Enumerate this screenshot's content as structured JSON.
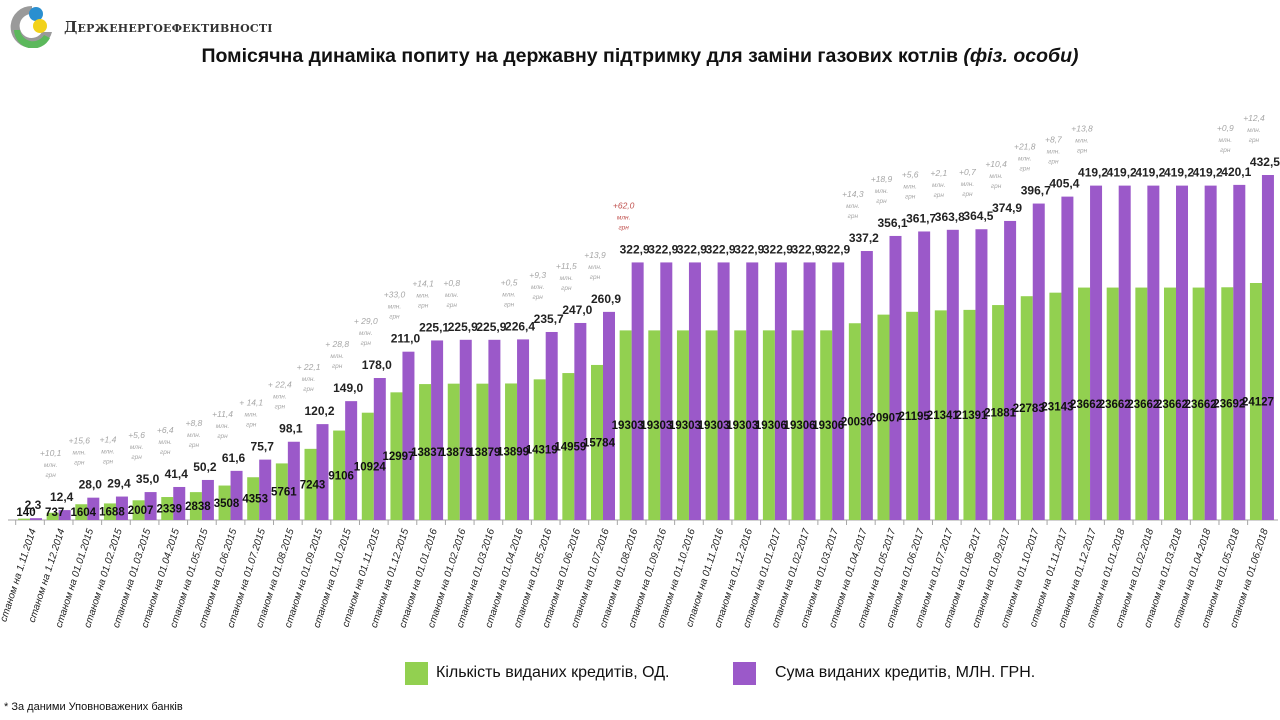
{
  "header": {
    "org_name": "Держенергоефективності",
    "title_main": "Помісячна динаміка попиту на державну підтримку для заміни газових котлів",
    "title_suffix": "(фіз. особи)"
  },
  "footnote": "* За даними Уповноважених банків",
  "colors": {
    "count": "#92d050",
    "sum": "#9b59c9",
    "annot": "#a6a6a6",
    "annot_highlight": "#c0504d"
  },
  "chart_data": {
    "type": "bar",
    "title": "Помісячна динаміка попиту на державну підтримку для заміни газових котлів (фіз. особи)",
    "xlabel": "",
    "ylabel": "",
    "grid": false,
    "legend_position": "bottom",
    "categories": [
      "станом на 1.11.2014",
      "станом на 1.12.2014",
      "станом на 01.01.2015",
      "станом на 01.02.2015",
      "станом на 01.03.2015",
      "станом на 01.04.2015",
      "станом на 01.05.2015",
      "станом на 01.06.2015",
      "станом на 01.07.2015",
      "станом на 01.08.2015",
      "станом на 01.09.2015",
      "станом на 01.10.2015",
      "станом на 01.11.2015",
      "станом на 01.12.2015",
      "станом на 01.01.2016",
      "станом на 01.02.2016",
      "станом на 01.03.2016",
      "станом на 01.04.2016",
      "станом на 01.05.2016",
      "станом на 01.06.2016",
      "станом на 01.07.2016",
      "станом на 01.08.2016",
      "станом на 01.09.2016",
      "станом на 01.10.2016",
      "станом на 01.11.2016",
      "станом на 01.12.2016",
      "станом на 01.01.2017",
      "станом на 01.02.2017",
      "станом на 01.03.2017",
      "станом на 01.04.2017",
      "станом на 01.05.2017",
      "станом на 01.06.2017",
      "станом на 01.07.2017",
      "станом на 01.08.2017",
      "станом на 01.09.2017",
      "станом на 01.10.2017",
      "станом на 01.11.2017",
      "станом на 01.12.2017",
      "станом на 01.01.2018",
      "станом на 01.02.2018",
      "станом на 01.03.2018",
      "станом на 01.04.2018",
      "станом на 01.05.2018",
      "станом на 01.06.2018"
    ],
    "series": [
      {
        "name": "Кількість виданих кредитів, ОД.",
        "axis": "count",
        "ylim": [
          0,
          35000
        ],
        "values": [
          140,
          737,
          1604,
          1688,
          2007,
          2339,
          2838,
          3508,
          4353,
          5761,
          7243,
          9106,
          10924,
          12997,
          13837,
          13879,
          13879,
          13899,
          14319,
          14959,
          15784,
          19303,
          19303,
          19303,
          19303,
          19303,
          19306,
          19306,
          19306,
          20030,
          20907,
          21195,
          21341,
          21391,
          21881,
          22783,
          23143,
          23662,
          23662,
          23662,
          23662,
          23662,
          23692,
          24127
        ],
        "labels": [
          "140",
          "737",
          "1604",
          "1688",
          "2007",
          "2339",
          "2838",
          "3508",
          "4353",
          "5761",
          "7243",
          "9106",
          "10924",
          "12997",
          "13837",
          "13879",
          "13879",
          "13899",
          "14319",
          "14959",
          "15784",
          "19303",
          "19303",
          "19303",
          "19303",
          "19303",
          "19306",
          "19306",
          "19306",
          "20030",
          "20907",
          "21195",
          "21341",
          "21391",
          "21881",
          "22783",
          "23143",
          "23662",
          "23662",
          "23662",
          "23662",
          "23662",
          "23692",
          "24127"
        ]
      },
      {
        "name": "Сума виданих кредитів, МЛН. ГРН.",
        "axis": "sum",
        "ylim": [
          0,
          431
        ],
        "values": [
          2.3,
          12.4,
          28.0,
          29.4,
          35.0,
          41.4,
          50.2,
          61.6,
          75.7,
          98.1,
          120.2,
          149.0,
          178.0,
          211.0,
          225.1,
          225.9,
          225.9,
          226.4,
          235.7,
          247.0,
          260.9,
          322.9,
          322.9,
          322.9,
          322.9,
          322.9,
          322.9,
          322.9,
          322.9,
          337.2,
          356.1,
          361.7,
          363.8,
          364.5,
          374.9,
          396.7,
          405.4,
          419.2,
          419.2,
          419.2,
          419.2,
          419.2,
          420.1,
          432.5
        ],
        "labels": [
          "2,3",
          "12,4",
          "28,0",
          "29,4",
          "35,0",
          "41,4",
          "50,2",
          "61,6",
          "75,7",
          "98,1",
          "120,2",
          "149,0",
          "178,0",
          "211,0",
          "225,1",
          "225,9",
          "225,9",
          "226,4",
          "235,7",
          "247,0",
          "260,9",
          "322,9",
          "322,9",
          "322,9",
          "322,9",
          "322,9",
          "322,9",
          "322,9",
          "322,9",
          "337,2",
          "356,1",
          "361,7",
          "363,8",
          "364,5",
          "374,9",
          "396,7",
          "405,4",
          "419,2",
          "419,2",
          "419,2",
          "419,2",
          "419,2",
          "420,1",
          "432,5"
        ]
      }
    ],
    "annotations": [
      {
        "index": 1,
        "text": "+10,1",
        "unit1": "млн.",
        "unit2": "грн"
      },
      {
        "index": 2,
        "text": "+15,6",
        "unit1": "млн.",
        "unit2": "грн"
      },
      {
        "index": 3,
        "text": "+1,4",
        "unit1": "млн.",
        "unit2": "грн"
      },
      {
        "index": 4,
        "text": "+5,6",
        "unit1": "млн.",
        "unit2": "грн"
      },
      {
        "index": 5,
        "text": "+6,4",
        "unit1": "млн.",
        "unit2": "грн"
      },
      {
        "index": 6,
        "text": "+8,8",
        "unit1": "млн.",
        "unit2": "грн"
      },
      {
        "index": 7,
        "text": "+11,4",
        "unit1": "млн.",
        "unit2": "грн"
      },
      {
        "index": 8,
        "text": "+ 14,1",
        "unit1": "млн.",
        "unit2": "грн"
      },
      {
        "index": 9,
        "text": "+ 22,4",
        "unit1": "млн.",
        "unit2": "грн"
      },
      {
        "index": 10,
        "text": "+ 22,1",
        "unit1": "млн.",
        "unit2": "грн"
      },
      {
        "index": 11,
        "text": "+ 28,8",
        "unit1": "млн.",
        "unit2": "грн"
      },
      {
        "index": 12,
        "text": "+ 29,0",
        "unit1": "млн.",
        "unit2": "грн"
      },
      {
        "index": 13,
        "text": "+33,0",
        "unit1": "млн.",
        "unit2": "грн"
      },
      {
        "index": 14,
        "text": "+14,1",
        "unit1": "млн.",
        "unit2": "грн"
      },
      {
        "index": 15,
        "text": "+0,8",
        "unit1": "млн.",
        "unit2": "грн"
      },
      {
        "index": 17,
        "text": "+0,5",
        "unit1": "млн.",
        "unit2": "грн"
      },
      {
        "index": 18,
        "text": "+9,3",
        "unit1": "млн.",
        "unit2": "грн"
      },
      {
        "index": 19,
        "text": "+11,5",
        "unit1": "млн.",
        "unit2": "грн"
      },
      {
        "index": 20,
        "text": "+13,9",
        "unit1": "млн.",
        "unit2": "грн"
      },
      {
        "index": 21,
        "text": "+62,0",
        "unit1": "млн.",
        "unit2": "грн",
        "highlight": true
      },
      {
        "index": 29,
        "text": "+14,3",
        "unit1": "млн.",
        "unit2": "грн"
      },
      {
        "index": 30,
        "text": "+18,9",
        "unit1": "млн.",
        "unit2": "грн"
      },
      {
        "index": 31,
        "text": "+5,6",
        "unit1": "млн.",
        "unit2": "грн"
      },
      {
        "index": 32,
        "text": "+2,1",
        "unit1": "млн.",
        "unit2": "грн"
      },
      {
        "index": 33,
        "text": "+0,7",
        "unit1": "млн.",
        "unit2": "грн"
      },
      {
        "index": 34,
        "text": "+10,4",
        "unit1": "млн.",
        "unit2": "грн"
      },
      {
        "index": 35,
        "text": "+21,8",
        "unit1": "млн.",
        "unit2": "грн"
      },
      {
        "index": 36,
        "text": "+8,7",
        "unit1": "млн.",
        "unit2": "грн"
      },
      {
        "index": 37,
        "text": "+13,8",
        "unit1": "млн.",
        "unit2": "грн"
      },
      {
        "index": 42,
        "text": "+0,9",
        "unit1": "млн.",
        "unit2": "грн"
      },
      {
        "index": 43,
        "text": "+12,4",
        "unit1": "млн.",
        "unit2": "грн"
      }
    ]
  }
}
